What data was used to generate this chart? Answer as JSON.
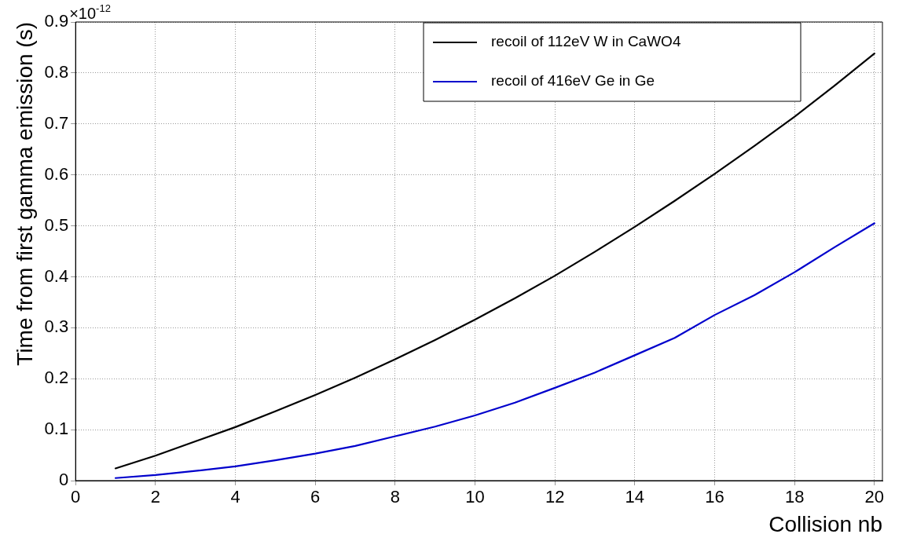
{
  "chart_data": {
    "type": "line",
    "xlabel": "Collision nb",
    "ylabel": "Time from first gamma emission (s)",
    "annotations": [
      "×10$^{-12}$"
    ],
    "x": [
      1,
      2,
      3,
      4,
      5,
      6,
      7,
      8,
      9,
      10,
      11,
      12,
      13,
      14,
      15,
      16,
      17,
      18,
      19,
      20
    ],
    "series": [
      {
        "name": "recoil of 112eV W in CaWO4",
        "color": "#000000",
        "values": [
          0.024,
          0.049,
          0.077,
          0.105,
          0.136,
          0.168,
          0.202,
          0.238,
          0.276,
          0.316,
          0.358,
          0.402,
          0.449,
          0.498,
          0.549,
          0.602,
          0.657,
          0.714,
          0.775,
          0.838
        ]
      },
      {
        "name": "recoil of 416eV Ge in Ge",
        "color": "#0000cc",
        "values": [
          0.005,
          0.011,
          0.019,
          0.028,
          0.04,
          0.053,
          0.068,
          0.087,
          0.106,
          0.128,
          0.153,
          0.182,
          0.212,
          0.246,
          0.28,
          0.325,
          0.364,
          0.409,
          0.458,
          0.505
        ]
      }
    ],
    "xlim": [
      0,
      20.2
    ],
    "xticks": [
      0,
      2,
      4,
      6,
      8,
      10,
      12,
      14,
      16,
      18,
      20
    ],
    "ylim": [
      0,
      0.9
    ],
    "yticks": [
      0,
      0.1,
      0.2,
      0.3,
      0.4,
      0.5,
      0.6,
      0.7,
      0.8,
      0.9
    ],
    "grid": true,
    "legend": "top right",
    "marker": "none",
    "line_style": "solid"
  }
}
